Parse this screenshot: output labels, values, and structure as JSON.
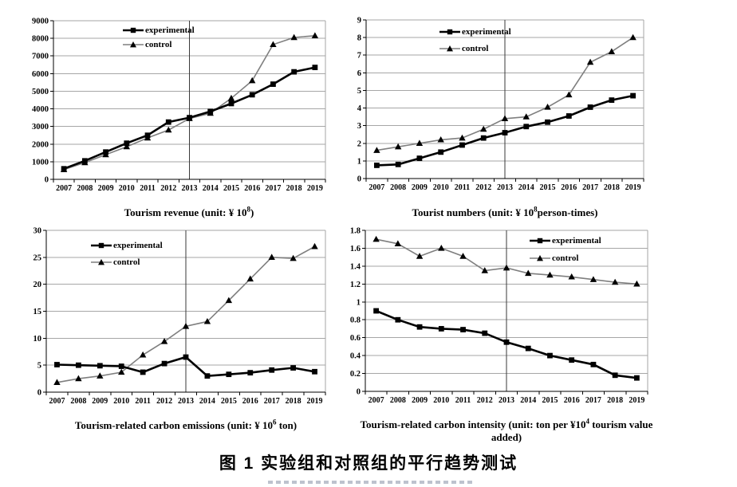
{
  "figure": {
    "caption": "图 1  实验组和对照组的平行趋势测试",
    "background": "#ffffff"
  },
  "colors": {
    "experimental": "#000000",
    "control": "#7f7f7f",
    "grid": "#a6a6a6",
    "axis": "#000000",
    "reference_line": "#3a3a3a",
    "text": "#000000"
  },
  "chart_data": [
    {
      "type": "line",
      "title": "Tourism revenue (unit: ¥ 10⁸)",
      "title_parts": {
        "pre": "Tourism revenue (unit: ¥ 10",
        "sup": "8",
        "post": ")"
      },
      "categories": [
        "2007",
        "2008",
        "2009",
        "2010",
        "2011",
        "2012",
        "2013",
        "2014",
        "2015",
        "2016",
        "2017",
        "2018",
        "2019"
      ],
      "ylim": [
        0,
        9000
      ],
      "ytick_step": 1000,
      "grid": true,
      "legend_position": "top-center-inside",
      "reference_line_x": "2013",
      "series": [
        {
          "name": "experimental",
          "marker": "square",
          "color": "#000000",
          "values": [
            600,
            1050,
            1550,
            2050,
            2500,
            3250,
            3500,
            3850,
            4300,
            4800,
            5400,
            6100,
            6350
          ]
        },
        {
          "name": "control",
          "marker": "triangle",
          "color": "#7f7f7f",
          "values": [
            550,
            950,
            1400,
            1850,
            2350,
            2800,
            3450,
            3750,
            4600,
            5600,
            7650,
            8050,
            8150
          ]
        }
      ]
    },
    {
      "type": "line",
      "title": "Tourist numbers (unit: ¥ 10⁸ person-times)",
      "title_parts": {
        "pre": "Tourist numbers (unit: ¥ 10",
        "sup": "8",
        "post": "person-times)"
      },
      "categories": [
        "2007",
        "2008",
        "2009",
        "2010",
        "2011",
        "2012",
        "2013",
        "2014",
        "2015",
        "2016",
        "2017",
        "2018",
        "2019"
      ],
      "ylim": [
        0,
        9
      ],
      "ytick_step": 1,
      "grid": true,
      "legend_position": "top-center-inside",
      "reference_line_x": "2013",
      "series": [
        {
          "name": "experimental",
          "marker": "square",
          "color": "#000000",
          "values": [
            0.75,
            0.8,
            1.15,
            1.5,
            1.9,
            2.3,
            2.6,
            2.95,
            3.2,
            3.55,
            4.05,
            4.45,
            4.7
          ]
        },
        {
          "name": "control",
          "marker": "triangle",
          "color": "#7f7f7f",
          "values": [
            1.6,
            1.8,
            2.0,
            2.2,
            2.3,
            2.8,
            3.4,
            3.5,
            4.05,
            4.75,
            6.6,
            7.2,
            8.0
          ]
        }
      ]
    },
    {
      "type": "line",
      "title": "Tourism-related carbon emissions (unit: ¥ 10⁶ ton)",
      "title_parts": {
        "pre": "Tourism-related carbon emissions (unit: ¥ 10",
        "sup": "6",
        "post": " ton)"
      },
      "categories": [
        "2007",
        "2008",
        "2009",
        "2010",
        "2011",
        "2012",
        "2013",
        "2014",
        "2015",
        "2016",
        "2017",
        "2018",
        "2019"
      ],
      "ylim": [
        0,
        30
      ],
      "ytick_step": 5,
      "grid": true,
      "legend_position": "top-left-inside",
      "reference_line_x": "2013",
      "series": [
        {
          "name": "experimental",
          "marker": "square",
          "color": "#000000",
          "values": [
            5.1,
            5.0,
            4.9,
            4.8,
            3.7,
            5.3,
            6.5,
            3.0,
            3.3,
            3.6,
            4.1,
            4.5,
            3.8
          ]
        },
        {
          "name": "control",
          "marker": "triangle",
          "color": "#7f7f7f",
          "values": [
            1.8,
            2.5,
            3.0,
            3.7,
            6.9,
            9.4,
            12.2,
            13.1,
            17.0,
            21.0,
            25.0,
            24.8,
            27.0
          ]
        }
      ]
    },
    {
      "type": "line",
      "title": "Tourism-related carbon intensity (unit: ton per ¥10⁴ tourism value added)",
      "title_parts": {
        "pre": "Tourism-related carbon intensity (unit: ton per ¥10",
        "sup": "4",
        "post": " tourism value added)"
      },
      "categories": [
        "2007",
        "2008",
        "2009",
        "2010",
        "2011",
        "2012",
        "2013",
        "2014",
        "2015",
        "2016",
        "2017",
        "2018",
        "2019"
      ],
      "ylim": [
        0,
        1.8
      ],
      "ytick_step": 0.2,
      "grid": true,
      "legend_position": "top-right-inside",
      "reference_line_x": "2013",
      "series": [
        {
          "name": "experimental",
          "marker": "square",
          "color": "#000000",
          "values": [
            0.9,
            0.8,
            0.72,
            0.7,
            0.69,
            0.65,
            0.55,
            0.48,
            0.4,
            0.35,
            0.3,
            0.18,
            0.15
          ]
        },
        {
          "name": "control",
          "marker": "triangle",
          "color": "#7f7f7f",
          "values": [
            1.7,
            1.65,
            1.51,
            1.6,
            1.51,
            1.35,
            1.38,
            1.32,
            1.3,
            1.28,
            1.25,
            1.22,
            1.2
          ]
        }
      ]
    }
  ]
}
